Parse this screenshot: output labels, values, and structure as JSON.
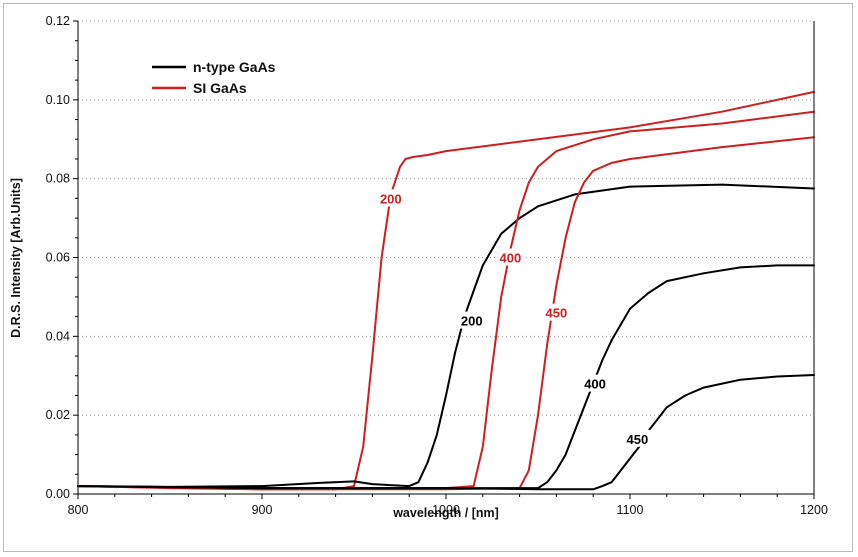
{
  "chart_data": {
    "type": "line",
    "title": "",
    "xlabel": "wavelength / [nm]",
    "ylabel": "D.R.S. Intensity [Arb.Units]",
    "xlim": [
      800,
      1200
    ],
    "ylim": [
      0,
      0.12
    ],
    "x_ticks": [
      800,
      900,
      1000,
      1100,
      1200
    ],
    "x_tick_labels": [
      "800",
      "900",
      "1000",
      "1100",
      "1200"
    ],
    "y_ticks": [
      0,
      0.02,
      0.04,
      0.06,
      0.08,
      0.1,
      0.12
    ],
    "y_tick_labels": [
      "0.00",
      "0.02",
      "0.04",
      "0.06",
      "0.08",
      "0.10",
      "0.12"
    ],
    "grid": "horizontal dotted",
    "legend_position": "top-left",
    "legend": [
      {
        "label": "n-type GaAs",
        "color": "#000000"
      },
      {
        "label": "SI GaAs",
        "color": "#cc1f1f"
      }
    ],
    "series": [
      {
        "group": "SI GaAs",
        "label": "200",
        "color": "#cc1f1f",
        "x": [
          800,
          850,
          900,
          940,
          950,
          955,
          960,
          965,
          970,
          975,
          978,
          982,
          990,
          1000,
          1050,
          1100,
          1150,
          1200
        ],
        "y": [
          0.002,
          0.0015,
          0.0012,
          0.0012,
          0.002,
          0.012,
          0.035,
          0.06,
          0.076,
          0.083,
          0.085,
          0.0855,
          0.086,
          0.087,
          0.09,
          0.093,
          0.097,
          0.102
        ]
      },
      {
        "group": "n-type GaAs",
        "label": "200",
        "color": "#000000",
        "x": [
          800,
          850,
          900,
          930,
          950,
          960,
          980,
          985,
          990,
          995,
          1000,
          1005,
          1010,
          1020,
          1030,
          1040,
          1050,
          1070,
          1100,
          1150,
          1200
        ],
        "y": [
          0.002,
          0.0018,
          0.002,
          0.0028,
          0.0032,
          0.0025,
          0.002,
          0.003,
          0.008,
          0.015,
          0.025,
          0.036,
          0.045,
          0.058,
          0.066,
          0.07,
          0.073,
          0.076,
          0.078,
          0.0785,
          0.0775
        ]
      },
      {
        "group": "SI GaAs",
        "label": "400",
        "color": "#cc1f1f",
        "x": [
          800,
          900,
          1000,
          1015,
          1020,
          1025,
          1030,
          1035,
          1040,
          1045,
          1050,
          1060,
          1080,
          1100,
          1150,
          1200
        ],
        "y": [
          0.002,
          0.0012,
          0.0015,
          0.002,
          0.012,
          0.032,
          0.05,
          0.062,
          0.072,
          0.079,
          0.083,
          0.087,
          0.09,
          0.092,
          0.094,
          0.097
        ]
      },
      {
        "group": "SI GaAs",
        "label": "450",
        "color": "#cc1f1f",
        "x": [
          800,
          900,
          1000,
          1040,
          1045,
          1050,
          1055,
          1060,
          1065,
          1070,
          1075,
          1080,
          1090,
          1100,
          1150,
          1200
        ],
        "y": [
          0.002,
          0.0012,
          0.0012,
          0.0015,
          0.006,
          0.02,
          0.038,
          0.053,
          0.065,
          0.074,
          0.079,
          0.082,
          0.084,
          0.085,
          0.088,
          0.0905
        ]
      },
      {
        "group": "n-type GaAs",
        "label": "400",
        "color": "#000000",
        "x": [
          800,
          900,
          1000,
          1050,
          1055,
          1060,
          1065,
          1070,
          1075,
          1080,
          1085,
          1090,
          1095,
          1100,
          1110,
          1120,
          1140,
          1160,
          1180,
          1200
        ],
        "y": [
          0.002,
          0.0015,
          0.0015,
          0.0015,
          0.003,
          0.006,
          0.01,
          0.016,
          0.022,
          0.028,
          0.034,
          0.039,
          0.043,
          0.047,
          0.051,
          0.054,
          0.056,
          0.0575,
          0.058,
          0.058
        ]
      },
      {
        "group": "n-type GaAs",
        "label": "450",
        "color": "#000000",
        "x": [
          800,
          900,
          1000,
          1050,
          1080,
          1085,
          1090,
          1095,
          1100,
          1105,
          1110,
          1115,
          1120,
          1130,
          1140,
          1160,
          1180,
          1200
        ],
        "y": [
          0.002,
          0.0015,
          0.0015,
          0.0012,
          0.0012,
          0.002,
          0.003,
          0.006,
          0.009,
          0.012,
          0.016,
          0.019,
          0.022,
          0.025,
          0.027,
          0.029,
          0.0298,
          0.0302
        ]
      }
    ],
    "annotations": [
      {
        "text": "200",
        "x": 970,
        "y": 0.075,
        "color": "#cc1f1f"
      },
      {
        "text": "200",
        "x": 1014,
        "y": 0.044,
        "color": "#000000"
      },
      {
        "text": "400",
        "x": 1035,
        "y": 0.06,
        "color": "#cc1f1f"
      },
      {
        "text": "450",
        "x": 1060,
        "y": 0.046,
        "color": "#cc1f1f"
      },
      {
        "text": "400",
        "x": 1081,
        "y": 0.028,
        "color": "#000000"
      },
      {
        "text": "450",
        "x": 1104,
        "y": 0.014,
        "color": "#000000"
      }
    ]
  }
}
